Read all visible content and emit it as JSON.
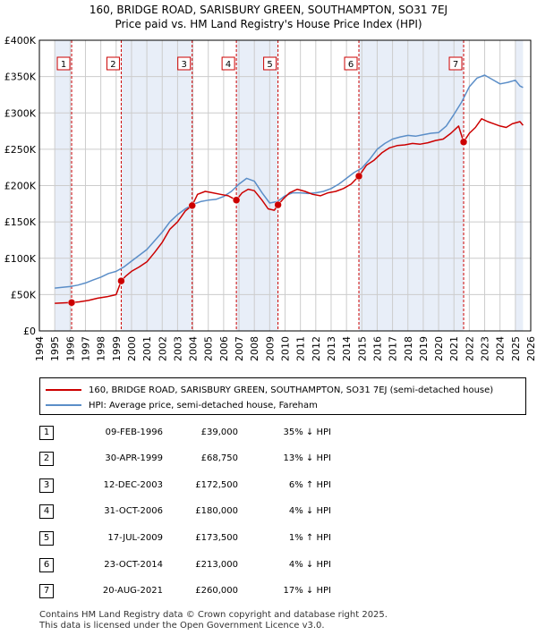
{
  "title_line1": "160, BRIDGE ROAD, SARISBURY GREEN, SOUTHAMPTON, SO31 7EJ",
  "title_line2": "Price paid vs. HM Land Registry's House Price Index (HPI)",
  "colors": {
    "property": "#cc0000",
    "hpi": "#5b8ec8",
    "shade": "#e8eef8",
    "grid": "#cccccc",
    "vline": "#cc0000"
  },
  "chart_data": {
    "type": "line",
    "ylim": [
      0,
      400000
    ],
    "xlim": [
      1994,
      2026
    ],
    "y_ticks": [
      {
        "value": 0,
        "label": "£0"
      },
      {
        "value": 50000,
        "label": "£50K"
      },
      {
        "value": 100000,
        "label": "£100K"
      },
      {
        "value": 150000,
        "label": "£150K"
      },
      {
        "value": 200000,
        "label": "£200K"
      },
      {
        "value": 250000,
        "label": "£250K"
      },
      {
        "value": 300000,
        "label": "£300K"
      },
      {
        "value": 350000,
        "label": "£350K"
      },
      {
        "value": 400000,
        "label": "£400K"
      }
    ],
    "x_ticks": [
      "1994",
      "1995",
      "1996",
      "1997",
      "1998",
      "1999",
      "2000",
      "2001",
      "2002",
      "2003",
      "2004",
      "2005",
      "2006",
      "2007",
      "2008",
      "2009",
      "2010",
      "2011",
      "2012",
      "2013",
      "2014",
      "2015",
      "2016",
      "2017",
      "2018",
      "2019",
      "2020",
      "2021",
      "2022",
      "2023",
      "2024",
      "2025",
      "2026"
    ],
    "shaded_ranges": [
      [
        1995.0,
        1996.1
      ],
      [
        1999.33,
        2003.95
      ],
      [
        2006.83,
        2009.54
      ],
      [
        2014.81,
        2021.63
      ],
      [
        2025.0,
        2025.5
      ]
    ],
    "series": [
      {
        "name": "160, BRIDGE ROAD, SARISBURY GREEN, SOUTHAMPTON, SO31 7EJ (semi-detached house)",
        "x": [
          1995.0,
          1996.1,
          1996.6,
          1997.2,
          1997.8,
          1998.4,
          1999.0,
          1999.33,
          1999.6,
          2000.0,
          2000.5,
          2001.0,
          2001.5,
          2002.0,
          2002.5,
          2003.0,
          2003.5,
          2003.95,
          2004.3,
          2004.8,
          2005.3,
          2005.8,
          2006.3,
          2006.83,
          2007.2,
          2007.6,
          2008.0,
          2008.5,
          2008.9,
          2009.3,
          2009.54,
          2009.9,
          2010.3,
          2010.8,
          2011.3,
          2011.8,
          2012.3,
          2012.8,
          2013.3,
          2013.8,
          2014.3,
          2014.81,
          2015.3,
          2015.8,
          2016.3,
          2016.8,
          2017.3,
          2017.8,
          2018.3,
          2018.8,
          2019.3,
          2019.8,
          2020.3,
          2020.8,
          2021.3,
          2021.63,
          2022.0,
          2022.4,
          2022.8,
          2023.2,
          2023.6,
          2024.0,
          2024.4,
          2024.8,
          2025.3,
          2025.5
        ],
        "values": [
          38000,
          39000,
          40000,
          42000,
          45000,
          47000,
          50000,
          68750,
          75000,
          82000,
          88000,
          95000,
          108000,
          122000,
          140000,
          150000,
          165000,
          172500,
          188000,
          192000,
          190000,
          188000,
          186000,
          180000,
          190000,
          195000,
          193000,
          180000,
          168000,
          166000,
          173500,
          182000,
          190000,
          195000,
          192000,
          188000,
          186000,
          190000,
          192000,
          196000,
          202000,
          213000,
          228000,
          235000,
          245000,
          252000,
          255000,
          256000,
          258000,
          257000,
          259000,
          262000,
          264000,
          272000,
          282000,
          260000,
          272000,
          280000,
          292000,
          288000,
          285000,
          282000,
          280000,
          285000,
          288000,
          283000
        ]
      },
      {
        "name": "HPI: Average price, semi-detached house, Fareham",
        "x": [
          1995.0,
          1995.5,
          1996.0,
          1996.5,
          1997.0,
          1997.5,
          1998.0,
          1998.5,
          1999.0,
          1999.5,
          2000.0,
          2000.5,
          2001.0,
          2001.5,
          2002.0,
          2002.5,
          2003.0,
          2003.5,
          2004.0,
          2004.5,
          2005.0,
          2005.5,
          2006.0,
          2006.5,
          2007.0,
          2007.5,
          2008.0,
          2008.5,
          2009.0,
          2009.5,
          2010.0,
          2010.5,
          2011.0,
          2011.5,
          2012.0,
          2012.5,
          2013.0,
          2013.5,
          2014.0,
          2014.5,
          2015.0,
          2015.5,
          2016.0,
          2016.5,
          2017.0,
          2017.5,
          2018.0,
          2018.5,
          2019.0,
          2019.5,
          2020.0,
          2020.5,
          2021.0,
          2021.5,
          2022.0,
          2022.5,
          2023.0,
          2023.5,
          2024.0,
          2024.5,
          2025.0,
          2025.3,
          2025.5
        ],
        "values": [
          59000,
          60000,
          61000,
          63000,
          66000,
          70000,
          74000,
          79000,
          82000,
          88000,
          96000,
          104000,
          112000,
          124000,
          136000,
          150000,
          160000,
          168000,
          174000,
          178000,
          180000,
          181000,
          185000,
          192000,
          202000,
          210000,
          206000,
          190000,
          176000,
          178000,
          186000,
          190000,
          190000,
          189000,
          190000,
          192000,
          196000,
          202000,
          210000,
          218000,
          224000,
          236000,
          250000,
          258000,
          264000,
          267000,
          269000,
          268000,
          270000,
          272000,
          273000,
          282000,
          298000,
          315000,
          336000,
          348000,
          352000,
          346000,
          340000,
          342000,
          345000,
          337000,
          335000
        ]
      }
    ],
    "sales": [
      {
        "label": "1",
        "x": 1996.1,
        "price": 39000
      },
      {
        "label": "2",
        "x": 1999.33,
        "price": 68750
      },
      {
        "label": "3",
        "x": 2003.95,
        "price": 172500
      },
      {
        "label": "4",
        "x": 2006.83,
        "price": 180000
      },
      {
        "label": "5",
        "x": 2009.54,
        "price": 173500
      },
      {
        "label": "6",
        "x": 2014.81,
        "price": 213000
      },
      {
        "label": "7",
        "x": 2021.63,
        "price": 260000
      }
    ]
  },
  "legend": {
    "property_label": "160, BRIDGE ROAD, SARISBURY GREEN, SOUTHAMPTON, SO31 7EJ (semi-detached house)",
    "hpi_label": "HPI: Average price, semi-detached house, Fareham"
  },
  "sales_table": [
    {
      "num": "1",
      "date": "09-FEB-1996",
      "price": "£39,000",
      "hpi": "35% ↓ HPI"
    },
    {
      "num": "2",
      "date": "30-APR-1999",
      "price": "£68,750",
      "hpi": "13% ↓ HPI"
    },
    {
      "num": "3",
      "date": "12-DEC-2003",
      "price": "£172,500",
      "hpi": "6% ↑ HPI"
    },
    {
      "num": "4",
      "date": "31-OCT-2006",
      "price": "£180,000",
      "hpi": "4% ↓ HPI"
    },
    {
      "num": "5",
      "date": "17-JUL-2009",
      "price": "£173,500",
      "hpi": "1% ↑ HPI"
    },
    {
      "num": "6",
      "date": "23-OCT-2014",
      "price": "£213,000",
      "hpi": "4% ↓ HPI"
    },
    {
      "num": "7",
      "date": "20-AUG-2021",
      "price": "£260,000",
      "hpi": "17% ↓ HPI"
    }
  ],
  "footer_line1": "Contains HM Land Registry data © Crown copyright and database right 2025.",
  "footer_line2": "This data is licensed under the Open Government Licence v3.0."
}
